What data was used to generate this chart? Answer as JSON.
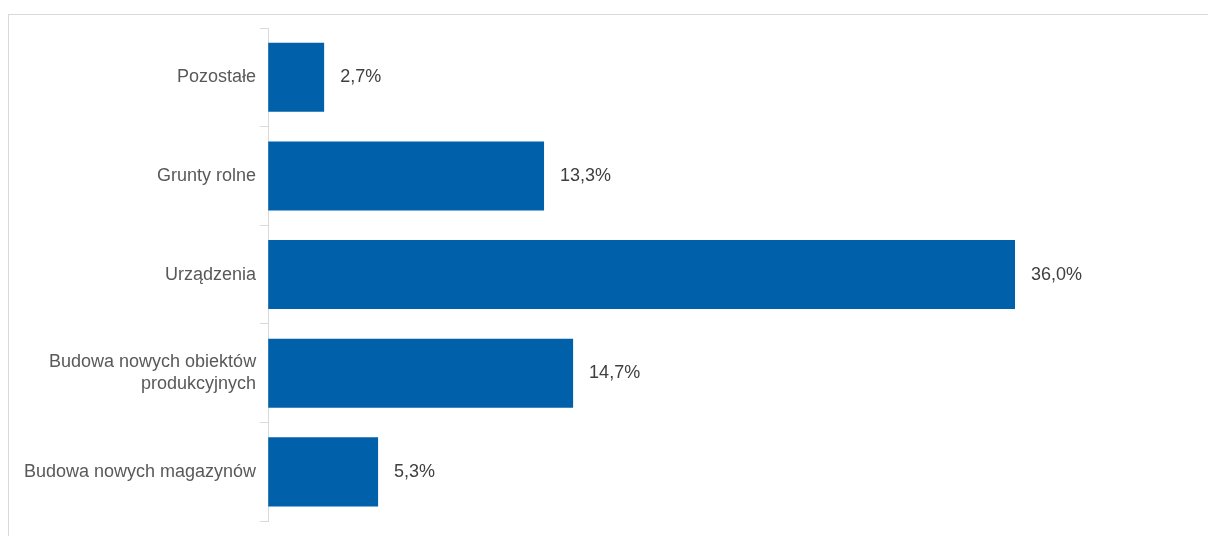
{
  "chart_data": {
    "type": "bar",
    "orientation": "horizontal",
    "categories": [
      "Pozostałe",
      "Grunty rolne",
      "Urządzenia",
      "Budowa nowych obiektów produkcyjnych",
      "Budowa nowych magazynów"
    ],
    "values": [
      2.7,
      13.3,
      36.0,
      14.7,
      5.3
    ],
    "value_labels": [
      "2,7%",
      "13,3%",
      "36,0%",
      "14,7%",
      "5,3%"
    ],
    "color": "#0060a9",
    "grid": false,
    "legend": false,
    "tick_labels": "y"
  }
}
